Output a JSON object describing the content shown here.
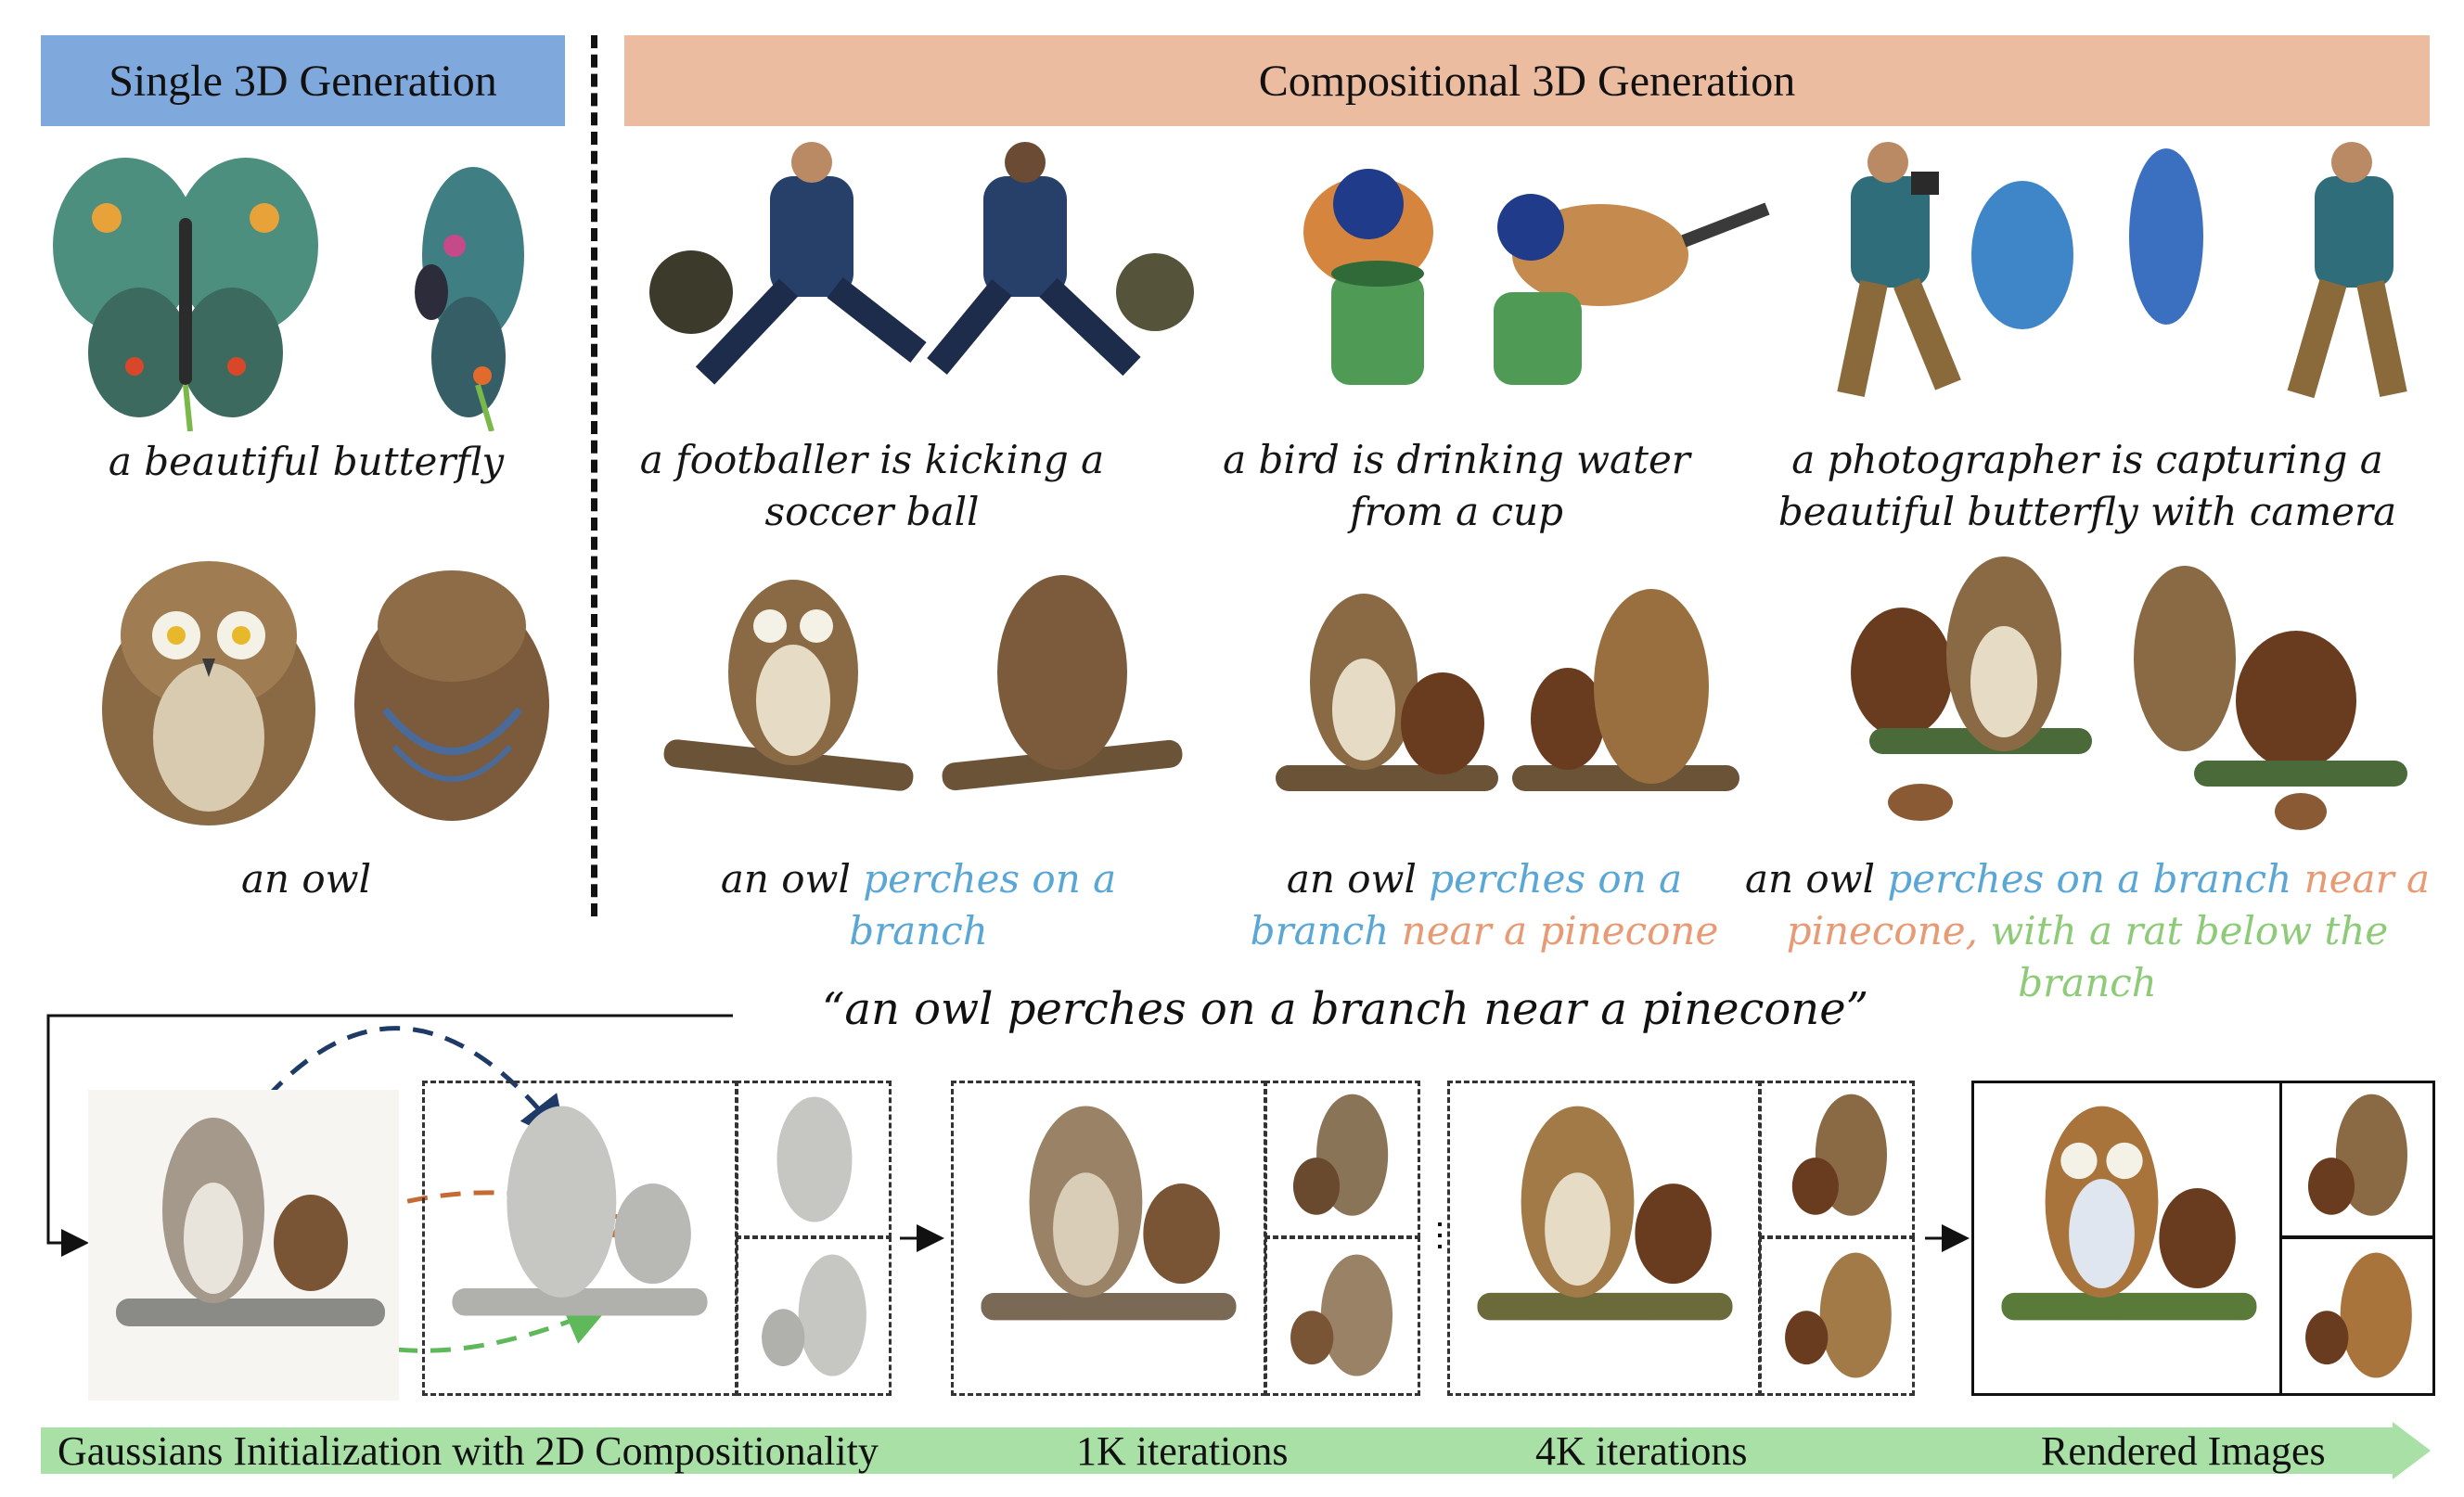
{
  "headers": {
    "single": "Single 3D Generation",
    "compositional": "Compositional 3D Generation"
  },
  "single_captions": {
    "butterfly": "a beautiful butterfly",
    "owl": "an owl"
  },
  "comp_captions": {
    "footballer": [
      "a footballer is kicking a",
      "soccer ball"
    ],
    "bird": [
      "a bird is drinking water",
      "from a cup"
    ],
    "photographer": [
      "a photographer is capturing a",
      "beautiful butterfly with camera"
    ]
  },
  "owl_captions": {
    "c1": {
      "black": "an  owl",
      "blue1": "perches on a",
      "blue2": "branch"
    },
    "c2": {
      "black": "an  owl",
      "blue1": "perches on a",
      "blue2": "branch",
      "orange": "near a pinecone"
    },
    "c3": {
      "black": "an  owl",
      "blue": "perches on a branch",
      "orange1": "near a",
      "orange2": "pinecone,",
      "green1": "with a rat below the",
      "green2": "branch"
    }
  },
  "quote": "“an  owl perches on a branch near a pinecone”",
  "stages": {
    "init": "Gaussians Initialization with 2D Compositionality",
    "k1": "1K iterations",
    "k4": "4K iterations",
    "rendered": "Rendered Images"
  },
  "colors": {
    "single_banner": "#7fa8dc",
    "comp_banner": "#ecbca1",
    "prompt_blue": "#5aa7d6",
    "prompt_orange": "#e79a73",
    "prompt_green": "#8ecb78",
    "progress_arrow": "#a8e0a6"
  }
}
